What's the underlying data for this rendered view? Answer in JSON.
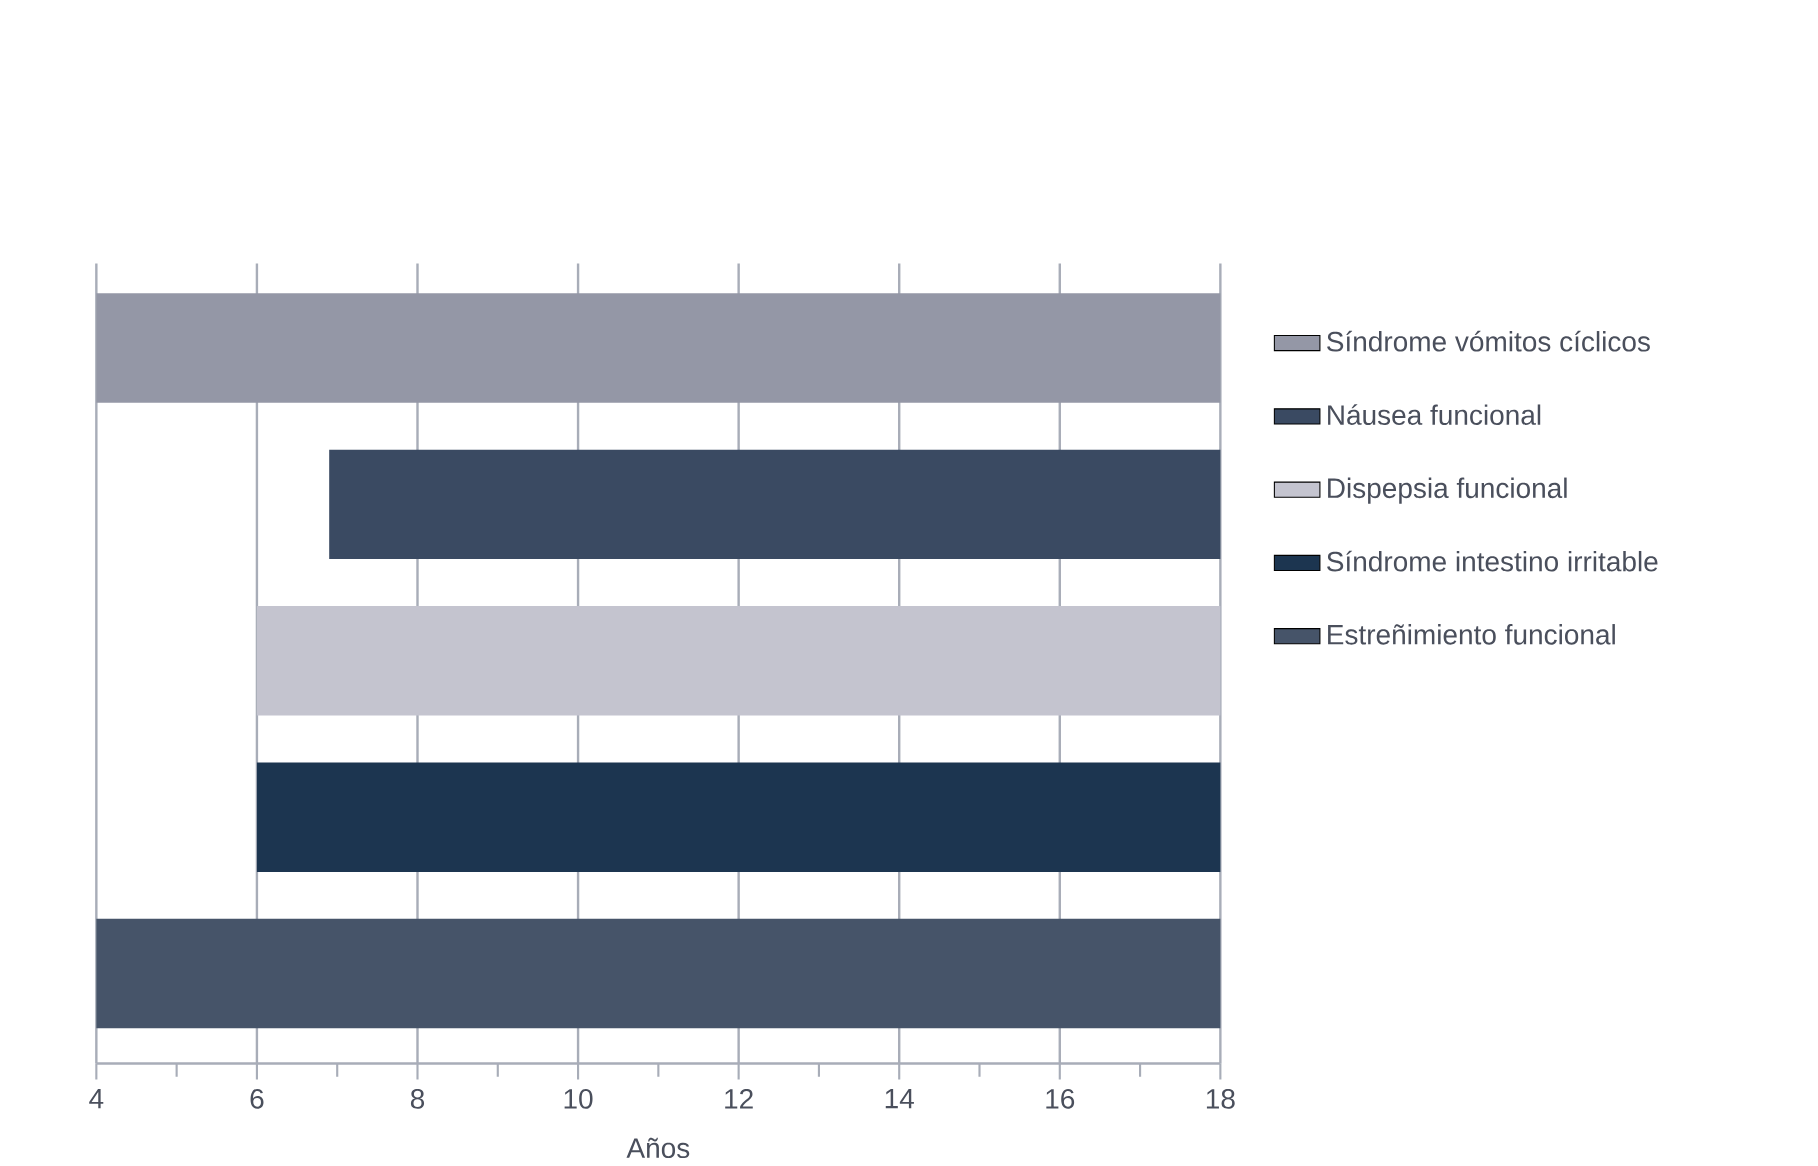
{
  "chart_data": {
    "type": "bar",
    "orientation": "horizontal",
    "categories": [
      null,
      null,
      null,
      null,
      null
    ],
    "series": [
      {
        "name": "Síndrome vómitos cíclicos",
        "color": "#9497a6",
        "values": [
          14,
          null,
          null,
          null,
          null
        ],
        "base": [
          4,
          null,
          null,
          null,
          null
        ]
      },
      {
        "name": "Náusea funcional",
        "color": "#3a4a62",
        "values": [
          null,
          11.1,
          null,
          null,
          null
        ],
        "base": [
          null,
          6.9,
          null,
          null,
          null
        ]
      },
      {
        "name": "Dispepsia funcional",
        "color": "#c4c4cf",
        "values": [
          null,
          null,
          12,
          null,
          null
        ],
        "base": [
          null,
          null,
          6,
          null,
          null
        ]
      },
      {
        "name": "Síndrome intestino irritable",
        "color": "#1c3550",
        "values": [
          null,
          null,
          null,
          12,
          null
        ],
        "base": [
          null,
          null,
          null,
          6,
          null
        ]
      },
      {
        "name": "Estreñimiento funcional",
        "color": "#465469",
        "values": [
          null,
          null,
          null,
          null,
          14
        ],
        "base": [
          null,
          null,
          null,
          null,
          4
        ]
      }
    ],
    "xlabel": "Años",
    "xlim": [
      4,
      18
    ],
    "xticks": [
      4,
      {
        "value": 5,
        "label": null
      },
      6,
      {
        "value": 7,
        "label": null
      },
      8,
      {
        "value": 9,
        "label": null
      },
      10,
      {
        "value": 11,
        "label": null
      },
      12,
      {
        "value": 13,
        "label": null
      },
      14,
      {
        "value": 15,
        "label": null
      },
      16,
      {
        "value": 17,
        "label": null
      },
      18
    ],
    "grid": "x",
    "legend": "right"
  }
}
